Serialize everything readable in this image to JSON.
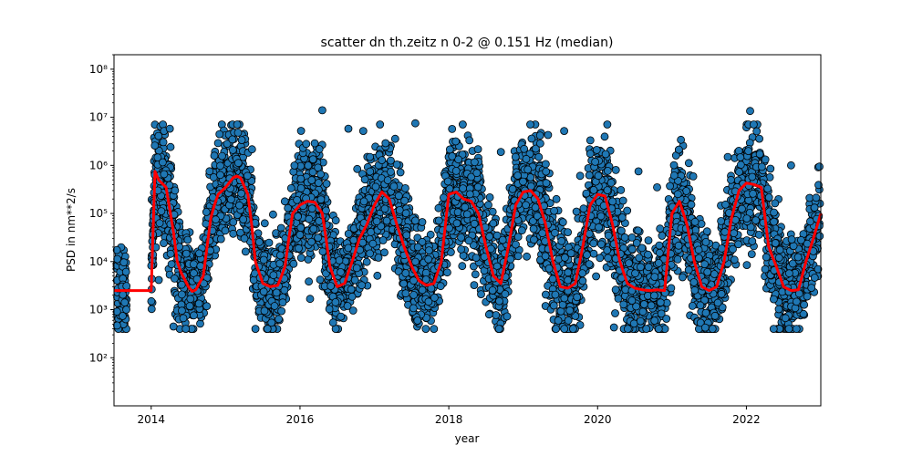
{
  "chart_data": {
    "type": "scatter",
    "title": "scatter dn th.zeitz n 0-2 @ 0.151 Hz (median)",
    "xlabel": "year",
    "ylabel": "PSD in nm**2/s",
    "xlim": [
      2013.5,
      2023.0
    ],
    "ylim": [
      10,
      200000000
    ],
    "yscale": "log",
    "grid": false,
    "x_ticks": [
      2014,
      2016,
      2018,
      2020,
      2022
    ],
    "x_tick_labels": [
      "2014",
      "2016",
      "2018",
      "2020",
      "2022"
    ],
    "y_ticks": [
      100,
      1000,
      10000,
      100000,
      1000000,
      10000000,
      100000000
    ],
    "y_tick_labels": [
      "10²",
      "10³",
      "10⁴",
      "10⁵",
      "10⁶",
      "10⁷",
      "10⁸"
    ],
    "colors": {
      "points": "#1f77b4",
      "point_edge": "#000000",
      "median": "#ff0000"
    },
    "series": [
      {
        "kind": "scatter",
        "cluster_centers_year": [
          2013.6,
          2014.05,
          2014.3,
          2014.6,
          2014.9,
          2015.15,
          2015.45,
          2015.75,
          2016.05,
          2016.35,
          2016.6,
          2016.9,
          2017.1,
          2017.4,
          2017.7,
          2018.0,
          2018.3,
          2018.6,
          2018.9,
          2019.1,
          2019.4,
          2019.7,
          2020.0,
          2020.3,
          2020.6,
          2020.9,
          2021.1,
          2021.4,
          2021.7,
          2022.0,
          2022.3,
          2022.6,
          2022.9
        ],
        "cluster_median_psd": [
          2500,
          700000,
          100000,
          3000,
          40000,
          500000,
          30000,
          5000,
          150000,
          10000,
          3000,
          80000,
          250000,
          15000,
          3500,
          250000,
          80000,
          4000,
          150000,
          280000,
          5000,
          20000,
          250000,
          20000,
          3000,
          5000,
          180000,
          3000,
          20000,
          400000,
          10000,
          2500,
          100000
        ],
        "outliers": [
          {
            "x": 2016.3,
            "y": 14000000
          },
          {
            "x": 2016.65,
            "y": 5800000
          },
          {
            "x": 2016.85,
            "y": 5200000
          },
          {
            "x": 2017.55,
            "y": 7500000
          },
          {
            "x": 2018.7,
            "y": 1900000
          },
          {
            "x": 2014.25,
            "y": 5800000
          },
          {
            "x": 2019.55,
            "y": 5200000
          },
          {
            "x": 2020.55,
            "y": 750000
          },
          {
            "x": 2022.05,
            "y": 13500000
          },
          {
            "x": 2022.6,
            "y": 1000000
          },
          {
            "x": 2021.75,
            "y": 1500000
          },
          {
            "x": 2020.8,
            "y": 350000
          }
        ]
      },
      {
        "kind": "line",
        "x": [
          2013.5,
          2013.65,
          2013.66,
          2014.0,
          2014.05,
          2014.1,
          2014.2,
          2014.25,
          2014.3,
          2014.35,
          2014.4,
          2014.5,
          2014.55,
          2014.6,
          2014.7,
          2014.75,
          2014.8,
          2014.85,
          2014.9,
          2015.0,
          2015.1,
          2015.15,
          2015.2,
          2015.3,
          2015.35,
          2015.4,
          2015.5,
          2015.6,
          2015.7,
          2015.75,
          2015.8,
          2015.85,
          2015.9,
          2016.0,
          2016.1,
          2016.2,
          2016.3,
          2016.35,
          2016.4,
          2016.5,
          2016.6,
          2016.7,
          2016.8,
          2016.9,
          2017.0,
          2017.1,
          2017.2,
          2017.3,
          2017.4,
          2017.5,
          2017.6,
          2017.7,
          2017.8,
          2017.9,
          2018.0,
          2018.1,
          2018.2,
          2018.3,
          2018.4,
          2018.5,
          2018.6,
          2018.7,
          2018.8,
          2018.9,
          2019.0,
          2019.1,
          2019.2,
          2019.3,
          2019.4,
          2019.5,
          2019.6,
          2019.7,
          2019.8,
          2019.9,
          2020.0,
          2020.1,
          2020.2,
          2020.3,
          2020.4,
          2020.5,
          2020.6,
          2020.7,
          2020.8,
          2020.9,
          2021.0,
          2021.1,
          2021.2,
          2021.3,
          2021.4,
          2021.5,
          2021.6,
          2021.7,
          2021.8,
          2021.9,
          2022.0,
          2022.1,
          2022.2,
          2022.3,
          2022.4,
          2022.5,
          2022.6,
          2022.7,
          2022.8,
          2022.9,
          2023.0
        ],
        "y": [
          2500,
          2500,
          2500,
          2500,
          750000,
          500000,
          350000,
          120000,
          40000,
          10000,
          6000,
          3000,
          2400,
          2600,
          5000,
          20000,
          80000,
          150000,
          250000,
          350000,
          550000,
          600000,
          550000,
          250000,
          60000,
          10000,
          3500,
          3000,
          3200,
          5000,
          8000,
          30000,
          100000,
          150000,
          180000,
          170000,
          100000,
          30000,
          8000,
          3000,
          3500,
          10000,
          30000,
          60000,
          150000,
          280000,
          200000,
          60000,
          20000,
          8000,
          4000,
          3200,
          3500,
          10000,
          250000,
          280000,
          200000,
          180000,
          100000,
          20000,
          5000,
          3500,
          20000,
          150000,
          280000,
          300000,
          200000,
          60000,
          10000,
          3000,
          2800,
          3500,
          20000,
          150000,
          250000,
          230000,
          60000,
          10000,
          3500,
          2800,
          2600,
          2500,
          2600,
          2500,
          100000,
          180000,
          60000,
          10000,
          3000,
          2500,
          3000,
          10000,
          80000,
          300000,
          430000,
          400000,
          350000,
          20000,
          8000,
          3000,
          2500,
          2600,
          10000,
          30000,
          100000
        ]
      }
    ]
  }
}
